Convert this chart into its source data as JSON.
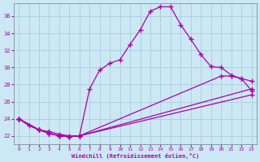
{
  "xlabel": "Windchill (Refroidissement éolien,°C)",
  "xlim": [
    -0.5,
    23.5
  ],
  "ylim": [
    21.0,
    37.5
  ],
  "xticks": [
    0,
    1,
    2,
    3,
    4,
    5,
    6,
    7,
    8,
    9,
    10,
    11,
    12,
    13,
    14,
    15,
    16,
    17,
    18,
    19,
    20,
    21,
    22,
    23
  ],
  "yticks": [
    22,
    24,
    26,
    28,
    30,
    32,
    34,
    36
  ],
  "bg_color": "#cce8f4",
  "grid_color": "#aaccdd",
  "line_color": "#aa00aa",
  "line1_x": [
    0,
    1,
    2,
    3,
    4,
    5,
    6,
    7,
    8,
    9,
    10,
    11,
    12,
    13,
    14,
    15,
    16,
    17,
    18,
    19,
    20,
    21,
    22,
    23
  ],
  "line1_y": [
    24.0,
    23.2,
    22.7,
    22.5,
    22.2,
    22.0,
    22.0,
    27.5,
    29.7,
    30.5,
    30.9,
    32.7,
    34.4,
    36.6,
    37.1,
    37.1,
    35.0,
    33.3,
    31.5,
    30.1,
    30.0,
    29.1,
    28.7,
    27.3
  ],
  "line2_x": [
    0,
    2,
    3,
    4,
    5,
    6,
    20,
    21,
    22,
    23
  ],
  "line2_y": [
    24.0,
    22.7,
    22.3,
    22.0,
    21.9,
    22.0,
    29.0,
    29.0,
    28.7,
    28.4
  ],
  "line3_x": [
    0,
    2,
    3,
    4,
    5,
    6,
    23
  ],
  "line3_y": [
    24.0,
    22.7,
    22.3,
    22.0,
    21.9,
    22.0,
    27.5
  ],
  "line4_x": [
    0,
    2,
    3,
    4,
    5,
    6,
    23
  ],
  "line4_y": [
    24.0,
    22.7,
    22.3,
    22.0,
    21.9,
    22.0,
    26.8
  ]
}
